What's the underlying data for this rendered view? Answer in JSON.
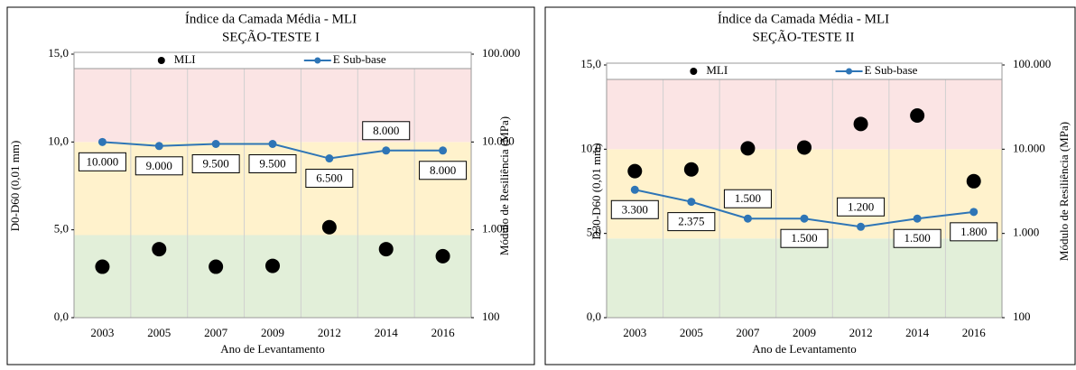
{
  "chart_data": [
    {
      "type": "scatter-line",
      "title": "Índice da Camada Média - MLI",
      "subtitle": "SEÇÃO-TESTE I",
      "y_label": "D0-D60 (0,01 mm)",
      "y2_label": "Módulo de Resiliência (MPa)",
      "x_label": "Ano de Levantamento",
      "categories": [
        "2003",
        "2005",
        "2007",
        "2009",
        "2012",
        "2014",
        "2016"
      ],
      "ylim": [
        0,
        15
      ],
      "yticks": [
        {
          "value": 0,
          "label": "0,0"
        },
        {
          "value": 5,
          "label": "5,0"
        },
        {
          "value": 10,
          "label": "10,0"
        },
        {
          "value": 15,
          "label": "15,0"
        }
      ],
      "y2lim": [
        100,
        100000
      ],
      "y2log": true,
      "y2ticks": [
        100,
        {
          "value": 1000,
          "label": "1.000"
        },
        {
          "value": 10000,
          "label": "10.000"
        },
        {
          "value": 100000,
          "label": "100.000"
        }
      ],
      "bands": [
        {
          "from": 0,
          "to": 4.7,
          "color": "#e2efd9"
        },
        {
          "from": 4.7,
          "to": 10,
          "color": "#fff2cc"
        },
        {
          "from": 10,
          "to": 15,
          "color": "#fbe4e4"
        }
      ],
      "series": [
        {
          "name": "MLI",
          "type": "scatter",
          "color": "#000000",
          "values": [
            2.9,
            3.9,
            2.9,
            2.95,
            5.15,
            3.9,
            3.5
          ]
        },
        {
          "name": "E Sub-base",
          "type": "line",
          "axis": "y2",
          "color": "#2e75b6",
          "values": [
            10000,
            9000,
            9500,
            9500,
            6500,
            8000,
            8000
          ],
          "value_labels": [
            "10.000",
            "9.000",
            "9.500",
            "9.500",
            "6.500",
            "8.000",
            "8.000"
          ]
        }
      ]
    },
    {
      "type": "scatter-line",
      "title": "Índice da Camada Média - MLI",
      "subtitle": "SEÇÃO-TESTE II",
      "y_label": "D30-D60 (0,01 mm)",
      "y2_label": "Módulo de Resiliência (MPa)",
      "x_label": "Ano de Levantamento",
      "categories": [
        "2003",
        "2005",
        "2007",
        "2009",
        "2012",
        "2014",
        "2016"
      ],
      "ylim": [
        0,
        15
      ],
      "yticks": [
        {
          "value": 0,
          "label": "0,0"
        },
        {
          "value": 5,
          "label": "5,0"
        },
        {
          "value": 10,
          "label": "10,0"
        },
        {
          "value": 15,
          "label": "15,0"
        }
      ],
      "y2lim": [
        100,
        100000
      ],
      "y2log": true,
      "y2ticks": [
        100,
        {
          "value": 1000,
          "label": "1.000"
        },
        {
          "value": 10000,
          "label": "10.000"
        },
        {
          "value": 100000,
          "label": "100.000"
        }
      ],
      "bands": [
        {
          "from": 0,
          "to": 4.7,
          "color": "#e2efd9"
        },
        {
          "from": 4.7,
          "to": 10,
          "color": "#fff2cc"
        },
        {
          "from": 10,
          "to": 15,
          "color": "#fbe4e4"
        }
      ],
      "series": [
        {
          "name": "MLI",
          "type": "scatter",
          "color": "#000000",
          "values": [
            8.7,
            8.8,
            10.05,
            10.1,
            11.5,
            12.0,
            8.1
          ]
        },
        {
          "name": "E Sub-base",
          "type": "line",
          "axis": "y2",
          "color": "#2e75b6",
          "values": [
            3300,
            2375,
            1500,
            1500,
            1200,
            1500,
            1800
          ],
          "value_labels": [
            "3.300",
            "2.375",
            "1.500",
            "1.500",
            "1.200",
            "1.500",
            "1.800"
          ]
        }
      ]
    }
  ]
}
